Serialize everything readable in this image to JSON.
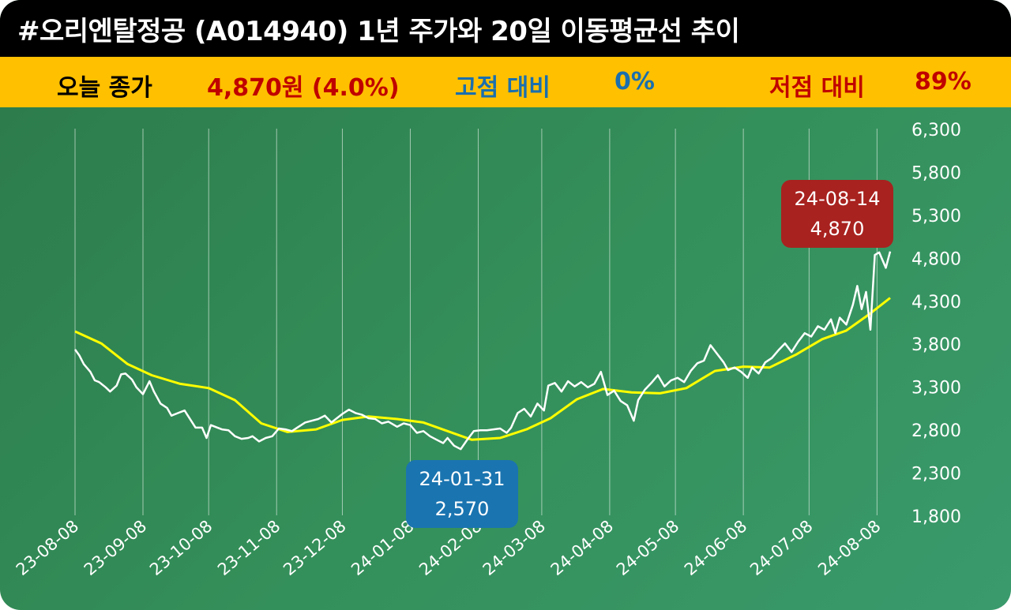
{
  "header": {
    "title": "#오리엔탈정공 (A014940) 1년 주가와 20일 이동평균선 추이"
  },
  "stats": {
    "close_label": "오늘 종가",
    "close_value": "4,870원 (4.0%)",
    "high_label": "고점 대비",
    "high_value": "0%",
    "low_label": "저점 대비",
    "low_value": "89%"
  },
  "colors": {
    "stats_bar": "#ffc000",
    "close_value": "#c00000",
    "high_text": "#1a6fae",
    "low_text": "#c00000",
    "price_line": "#ffffff",
    "ma_line": "#ffff00",
    "high_callout": "#a8221f",
    "low_callout": "#1a74b0"
  },
  "callouts": {
    "high": {
      "date": "24-08-14",
      "value": "4,870"
    },
    "low": {
      "date": "24-01-31",
      "value": "2,570"
    }
  },
  "chart_data": {
    "type": "line",
    "x_type": "date",
    "x_ticks": [
      "23-08-08",
      "23-09-08",
      "23-10-08",
      "23-11-08",
      "23-12-08",
      "24-01-08",
      "24-02-08",
      "24-03-08",
      "24-04-08",
      "24-05-08",
      "24-06-08",
      "24-07-08",
      "24-08-08"
    ],
    "y_ticks": [
      6300,
      5800,
      5300,
      4800,
      4300,
      3800,
      3300,
      2800,
      2300,
      1800
    ],
    "ylim": [
      1800,
      6300
    ],
    "xlim": [
      "2023-08-08",
      "2024-08-14"
    ],
    "grid": "vertical",
    "y_axis_position": "right",
    "series": [
      {
        "role": "price",
        "points": [
          [
            "2023-08-08",
            3730
          ],
          [
            "2023-08-10",
            3660
          ],
          [
            "2023-08-12",
            3560
          ],
          [
            "2023-08-15",
            3470
          ],
          [
            "2023-08-17",
            3370
          ],
          [
            "2023-08-19",
            3350
          ],
          [
            "2023-08-22",
            3290
          ],
          [
            "2023-08-24",
            3240
          ],
          [
            "2023-08-27",
            3310
          ],
          [
            "2023-08-29",
            3440
          ],
          [
            "2023-08-31",
            3450
          ],
          [
            "2023-09-03",
            3380
          ],
          [
            "2023-09-05",
            3290
          ],
          [
            "2023-09-08",
            3210
          ],
          [
            "2023-09-11",
            3360
          ],
          [
            "2023-09-13",
            3240
          ],
          [
            "2023-09-16",
            3100
          ],
          [
            "2023-09-19",
            3050
          ],
          [
            "2023-09-21",
            2960
          ],
          [
            "2023-09-24",
            2990
          ],
          [
            "2023-09-27",
            3020
          ],
          [
            "2023-09-30",
            2900
          ],
          [
            "2023-10-02",
            2820
          ],
          [
            "2023-10-05",
            2820
          ],
          [
            "2023-10-07",
            2700
          ],
          [
            "2023-10-09",
            2850
          ],
          [
            "2023-10-12",
            2820
          ],
          [
            "2023-10-14",
            2800
          ],
          [
            "2023-10-17",
            2790
          ],
          [
            "2023-10-20",
            2720
          ],
          [
            "2023-10-23",
            2690
          ],
          [
            "2023-10-26",
            2700
          ],
          [
            "2023-10-28",
            2720
          ],
          [
            "2023-10-31",
            2660
          ],
          [
            "2023-11-03",
            2700
          ],
          [
            "2023-11-06",
            2720
          ],
          [
            "2023-11-09",
            2810
          ],
          [
            "2023-11-12",
            2800
          ],
          [
            "2023-11-15",
            2780
          ],
          [
            "2023-11-18",
            2830
          ],
          [
            "2023-11-21",
            2880
          ],
          [
            "2023-11-24",
            2900
          ],
          [
            "2023-11-27",
            2920
          ],
          [
            "2023-11-30",
            2960
          ],
          [
            "2023-12-03",
            2880
          ],
          [
            "2023-12-06",
            2940
          ],
          [
            "2023-12-08",
            2980
          ],
          [
            "2023-12-11",
            3030
          ],
          [
            "2023-12-14",
            2990
          ],
          [
            "2023-12-17",
            2970
          ],
          [
            "2023-12-20",
            2930
          ],
          [
            "2023-12-23",
            2920
          ],
          [
            "2023-12-26",
            2870
          ],
          [
            "2023-12-29",
            2890
          ],
          [
            "2024-01-02",
            2830
          ],
          [
            "2024-01-05",
            2870
          ],
          [
            "2024-01-08",
            2850
          ],
          [
            "2024-01-11",
            2760
          ],
          [
            "2024-01-14",
            2780
          ],
          [
            "2024-01-17",
            2720
          ],
          [
            "2024-01-20",
            2680
          ],
          [
            "2024-01-23",
            2640
          ],
          [
            "2024-01-25",
            2700
          ],
          [
            "2024-01-28",
            2610
          ],
          [
            "2024-01-31",
            2570
          ],
          [
            "2024-02-03",
            2680
          ],
          [
            "2024-02-06",
            2780
          ],
          [
            "2024-02-09",
            2790
          ],
          [
            "2024-02-12",
            2790
          ],
          [
            "2024-02-15",
            2800
          ],
          [
            "2024-02-18",
            2810
          ],
          [
            "2024-02-21",
            2760
          ],
          [
            "2024-02-23",
            2820
          ],
          [
            "2024-02-26",
            2990
          ],
          [
            "2024-02-29",
            3040
          ],
          [
            "2024-03-03",
            2950
          ],
          [
            "2024-03-06",
            3100
          ],
          [
            "2024-03-09",
            3020
          ],
          [
            "2024-03-11",
            3310
          ],
          [
            "2024-03-14",
            3340
          ],
          [
            "2024-03-17",
            3240
          ],
          [
            "2024-03-20",
            3360
          ],
          [
            "2024-03-23",
            3300
          ],
          [
            "2024-03-26",
            3350
          ],
          [
            "2024-03-29",
            3290
          ],
          [
            "2024-04-01",
            3330
          ],
          [
            "2024-04-04",
            3470
          ],
          [
            "2024-04-07",
            3200
          ],
          [
            "2024-04-10",
            3250
          ],
          [
            "2024-04-13",
            3130
          ],
          [
            "2024-04-16",
            3080
          ],
          [
            "2024-04-19",
            2900
          ],
          [
            "2024-04-21",
            3140
          ],
          [
            "2024-04-24",
            3260
          ],
          [
            "2024-04-27",
            3340
          ],
          [
            "2024-04-30",
            3430
          ],
          [
            "2024-05-03",
            3300
          ],
          [
            "2024-05-06",
            3370
          ],
          [
            "2024-05-09",
            3400
          ],
          [
            "2024-05-12",
            3350
          ],
          [
            "2024-05-15",
            3480
          ],
          [
            "2024-05-18",
            3570
          ],
          [
            "2024-05-21",
            3600
          ],
          [
            "2024-05-24",
            3780
          ],
          [
            "2024-05-27",
            3680
          ],
          [
            "2024-05-30",
            3580
          ],
          [
            "2024-06-01",
            3490
          ],
          [
            "2024-06-04",
            3520
          ],
          [
            "2024-06-07",
            3470
          ],
          [
            "2024-06-10",
            3400
          ],
          [
            "2024-06-12",
            3520
          ],
          [
            "2024-06-15",
            3450
          ],
          [
            "2024-06-18",
            3580
          ],
          [
            "2024-06-21",
            3630
          ],
          [
            "2024-06-24",
            3720
          ],
          [
            "2024-06-27",
            3800
          ],
          [
            "2024-06-30",
            3700
          ],
          [
            "2024-07-03",
            3820
          ],
          [
            "2024-07-06",
            3920
          ],
          [
            "2024-07-09",
            3880
          ],
          [
            "2024-07-12",
            4000
          ],
          [
            "2024-07-15",
            3960
          ],
          [
            "2024-07-18",
            4080
          ],
          [
            "2024-07-20",
            3920
          ],
          [
            "2024-07-22",
            4100
          ],
          [
            "2024-07-25",
            4020
          ],
          [
            "2024-07-28",
            4250
          ],
          [
            "2024-07-30",
            4470
          ],
          [
            "2024-08-01",
            4200
          ],
          [
            "2024-08-03",
            4400
          ],
          [
            "2024-08-05",
            3960
          ],
          [
            "2024-08-07",
            4830
          ],
          [
            "2024-08-09",
            4860
          ],
          [
            "2024-08-12",
            4680
          ],
          [
            "2024-08-14",
            4870
          ]
        ]
      },
      {
        "role": "moving_average_20d",
        "points": [
          [
            "2023-08-08",
            3940
          ],
          [
            "2023-08-20",
            3800
          ],
          [
            "2023-09-01",
            3560
          ],
          [
            "2023-09-12",
            3430
          ],
          [
            "2023-09-25",
            3330
          ],
          [
            "2023-10-08",
            3280
          ],
          [
            "2023-10-20",
            3140
          ],
          [
            "2023-11-01",
            2870
          ],
          [
            "2023-11-13",
            2770
          ],
          [
            "2023-11-26",
            2800
          ],
          [
            "2023-12-08",
            2910
          ],
          [
            "2023-12-20",
            2950
          ],
          [
            "2024-01-02",
            2920
          ],
          [
            "2024-01-14",
            2880
          ],
          [
            "2024-01-25",
            2780
          ],
          [
            "2024-02-05",
            2680
          ],
          [
            "2024-02-18",
            2700
          ],
          [
            "2024-03-01",
            2800
          ],
          [
            "2024-03-12",
            2930
          ],
          [
            "2024-03-24",
            3150
          ],
          [
            "2024-04-05",
            3270
          ],
          [
            "2024-04-18",
            3230
          ],
          [
            "2024-05-01",
            3220
          ],
          [
            "2024-05-13",
            3280
          ],
          [
            "2024-05-26",
            3480
          ],
          [
            "2024-06-08",
            3530
          ],
          [
            "2024-06-20",
            3520
          ],
          [
            "2024-07-02",
            3670
          ],
          [
            "2024-07-14",
            3850
          ],
          [
            "2024-07-25",
            3950
          ],
          [
            "2024-08-05",
            4150
          ],
          [
            "2024-08-14",
            4330
          ]
        ]
      }
    ]
  }
}
